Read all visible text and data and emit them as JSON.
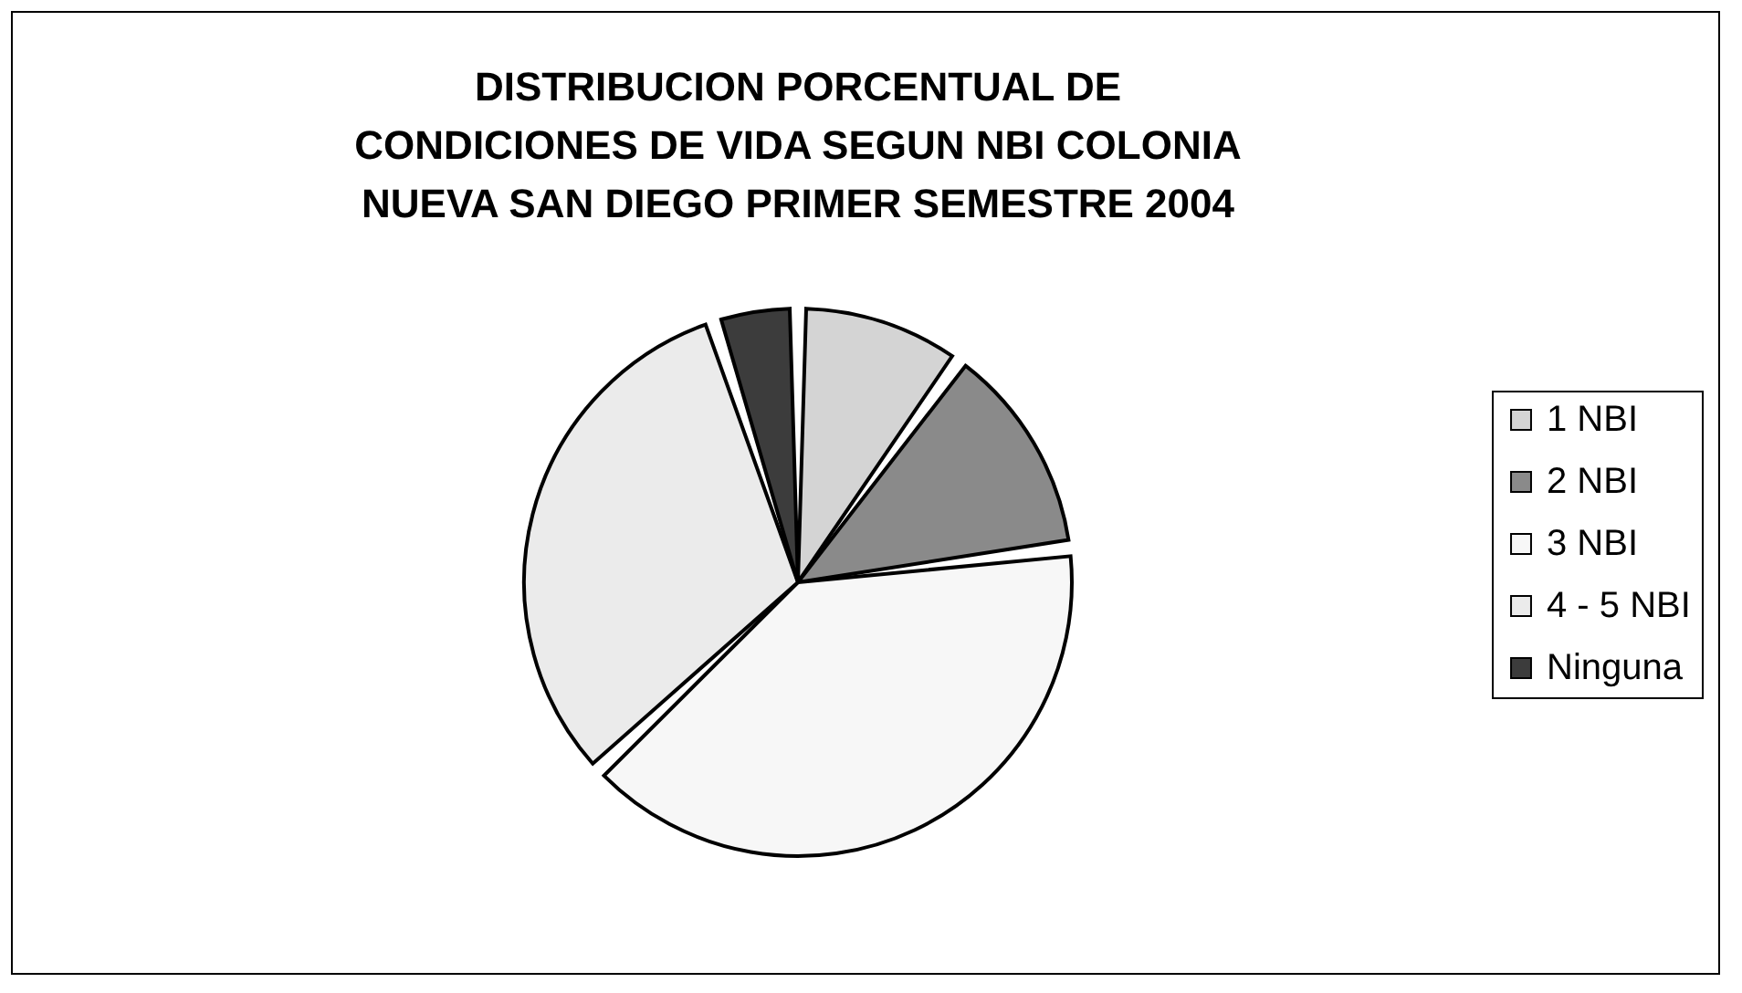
{
  "chart_data": {
    "type": "pie",
    "title": "DISTRIBUCION PORCENTUAL DE\nCONDICIONES DE VIDA SEGUN NBI COLONIA\nNUEVA SAN DIEGO PRIMER SEMESTRE 2004",
    "categories": [
      "1 NBI",
      "2 NBI",
      "3 NBI",
      "4 - 5 NBI",
      "Ninguna"
    ],
    "values": [
      10,
      13,
      40,
      32,
      5
    ],
    "colors": [
      "#d4d4d4",
      "#8a8a8a",
      "#f7f7f7",
      "#ebebeb",
      "#3c3c3c"
    ],
    "legend": "right"
  }
}
